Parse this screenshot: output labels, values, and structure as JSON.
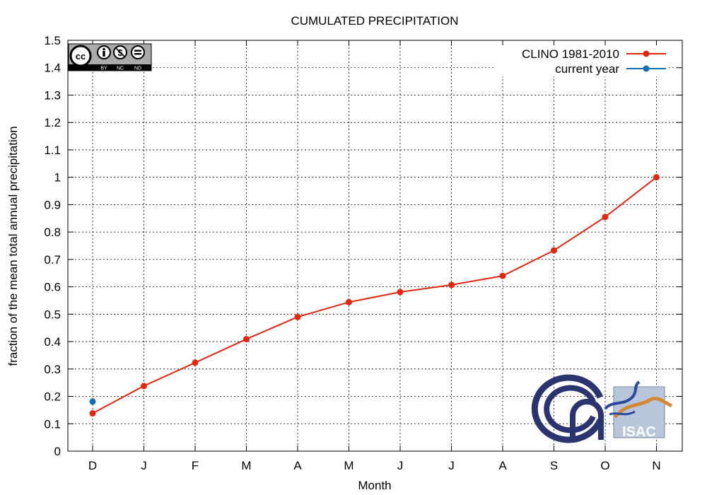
{
  "chart_data": {
    "type": "line",
    "title": "CUMULATED PRECIPITATION",
    "xlabel": "Month",
    "ylabel": "fraction of the mean total annual precipitation",
    "categories": [
      "D",
      "J",
      "F",
      "M",
      "A",
      "M",
      "J",
      "J",
      "A",
      "S",
      "O",
      "N"
    ],
    "ylim": [
      0,
      1.5
    ],
    "yticks": [
      "0",
      "0.1",
      "0.2",
      "0.3",
      "0.4",
      "0.5",
      "0.6",
      "0.7",
      "0.8",
      "0.9",
      "1",
      "1.1",
      "1.2",
      "1.3",
      "1.4",
      "1.5"
    ],
    "grid": true,
    "legend_position": "top-right",
    "series": [
      {
        "name": "CLINO 1981-2010",
        "color": "#e02810",
        "values": [
          0.138,
          0.238,
          0.323,
          0.409,
          0.49,
          0.544,
          0.581,
          0.607,
          0.64,
          0.733,
          0.855,
          1.0
        ]
      },
      {
        "name": "current year",
        "color": "#1070b0",
        "values": [
          0.181,
          null,
          null,
          null,
          null,
          null,
          null,
          null,
          null,
          null,
          null,
          null
        ]
      }
    ]
  },
  "license_badge": {
    "icon": "cc-by-nc-nd-icon",
    "labels": [
      "BY",
      "NC",
      "ND"
    ]
  },
  "logos": {
    "cnr": "cnr-logo",
    "isac": {
      "icon": "isac-logo",
      "text": "ISAC"
    }
  }
}
